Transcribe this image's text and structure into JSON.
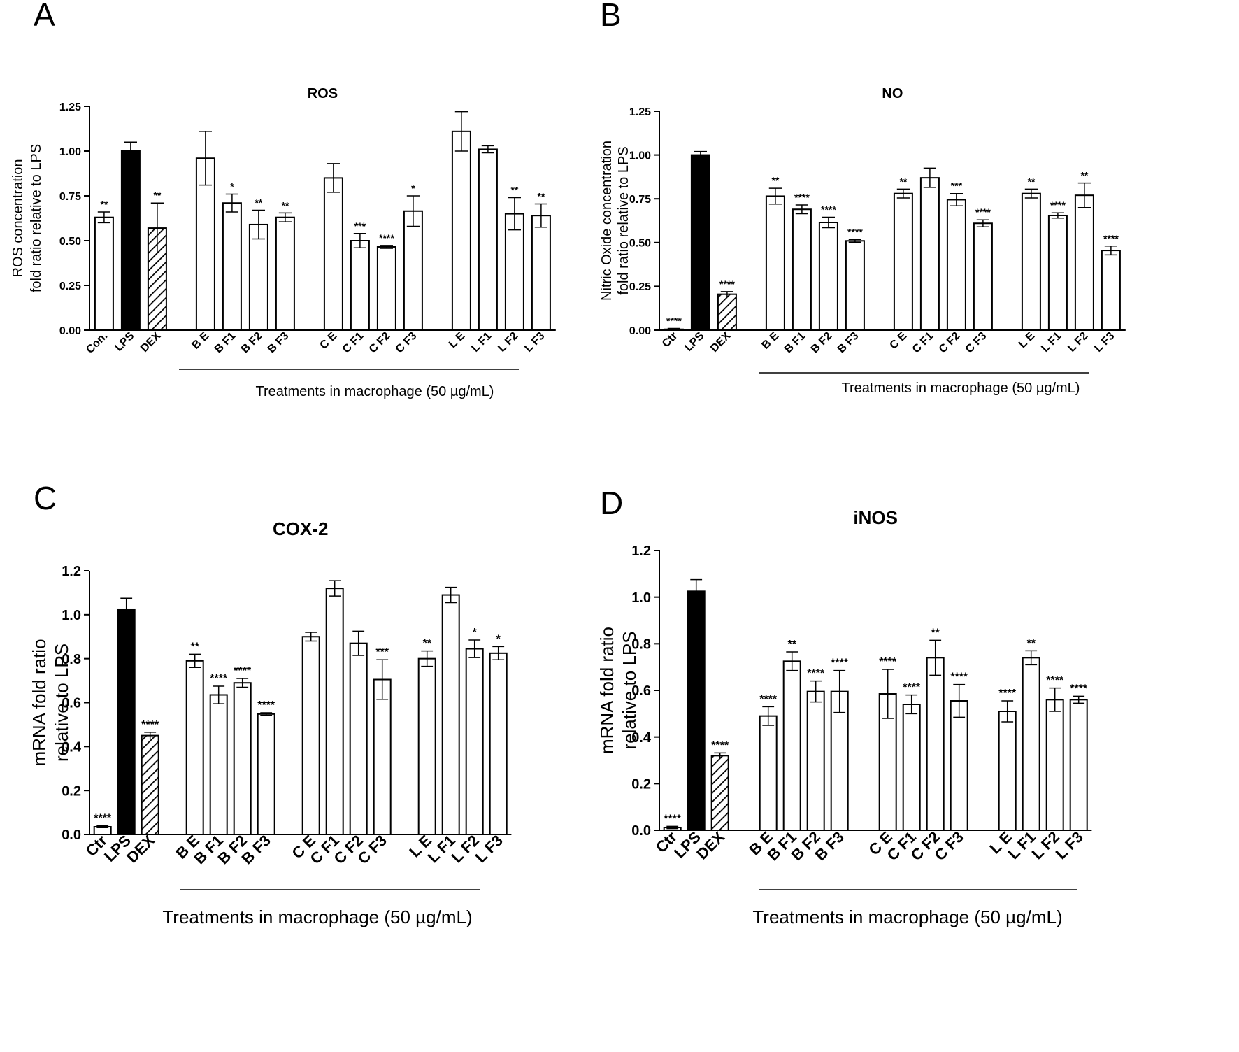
{
  "colors": {
    "axis": "#000000",
    "bar_fill": "#ffffff",
    "bar_lps": "#000000",
    "hatch": "#000000"
  },
  "chart_data": [
    {
      "panel": "A",
      "type": "bar",
      "title": "ROS",
      "ylabel_lines": [
        "ROS concentration",
        "fold ratio relative to LPS"
      ],
      "xlabel": "Treatments in macrophage (50 µg/mL)",
      "ylim": [
        0,
        1.25
      ],
      "ticks": [
        0,
        0.25,
        0.5,
        0.75,
        1.0,
        1.25
      ],
      "tick_labels": [
        "0.00",
        "0.25",
        "0.50",
        "0.75",
        "1.00",
        "1.25"
      ],
      "grid": false,
      "categories": [
        "Con.",
        "LPS",
        "DEX",
        "B E",
        "B F1",
        "B F2",
        "B F3",
        "C E",
        "C F1",
        "C F2",
        "C F3",
        "L E",
        "L F1",
        "L F2",
        "L F3"
      ],
      "values": [
        0.63,
        1.0,
        0.57,
        0.96,
        0.71,
        0.59,
        0.63,
        0.85,
        0.5,
        0.465,
        0.665,
        1.11,
        1.01,
        0.65,
        0.64
      ],
      "errors": [
        0.03,
        0.05,
        0.14,
        0.15,
        0.05,
        0.08,
        0.025,
        0.08,
        0.04,
        0.008,
        0.085,
        0.11,
        0.02,
        0.09,
        0.065
      ],
      "significance": [
        "**",
        "",
        "**",
        "",
        "*",
        "**",
        "**",
        "",
        "***",
        "****",
        "*",
        "",
        "",
        "**",
        "**"
      ],
      "styles": [
        "open",
        "solid",
        "hatch",
        "open",
        "open",
        "open",
        "open",
        "open",
        "open",
        "open",
        "open",
        "open",
        "open",
        "open",
        "open"
      ]
    },
    {
      "panel": "B",
      "type": "bar",
      "title": "NO",
      "ylabel_lines": [
        "Nitric Oxide concentration",
        "fold ratio relative to LPS"
      ],
      "xlabel": "Treatments in macrophage (50 µg/mL)",
      "ylim": [
        0,
        1.25
      ],
      "ticks": [
        0,
        0.25,
        0.5,
        0.75,
        1.0,
        1.25
      ],
      "tick_labels": [
        "0.00",
        "0.25",
        "0.50",
        "0.75",
        "1.00",
        "1.25"
      ],
      "grid": false,
      "categories": [
        "Ctr",
        "LPS",
        "DEX",
        "B E",
        "B F1",
        "B F2",
        "B F3",
        "C E",
        "C F1",
        "C F2",
        "C F3",
        "L E",
        "L F1",
        "L F2",
        "L F3"
      ],
      "values": [
        0.005,
        1.0,
        0.205,
        0.765,
        0.69,
        0.615,
        0.51,
        0.78,
        0.87,
        0.745,
        0.61,
        0.78,
        0.655,
        0.77,
        0.455
      ],
      "errors": [
        0.005,
        0.02,
        0.015,
        0.045,
        0.025,
        0.03,
        0.008,
        0.025,
        0.055,
        0.035,
        0.02,
        0.025,
        0.015,
        0.07,
        0.025
      ],
      "significance": [
        "****",
        "",
        "****",
        "**",
        "****",
        "****",
        "****",
        "**",
        "",
        "***",
        "****",
        "**",
        "****",
        "**",
        "****"
      ],
      "styles": [
        "open",
        "solid",
        "hatch",
        "open",
        "open",
        "open",
        "open",
        "open",
        "open",
        "open",
        "open",
        "open",
        "open",
        "open",
        "open"
      ]
    },
    {
      "panel": "C",
      "type": "bar",
      "title": "COX-2",
      "ylabel_lines": [
        "mRNA fold ratio",
        "relative to LPS"
      ],
      "xlabel": "Treatments in macrophage (50 µg/mL)",
      "ylim": [
        0,
        1.2
      ],
      "ticks": [
        0,
        0.2,
        0.4,
        0.6,
        0.8,
        1.0,
        1.2
      ],
      "tick_labels": [
        "0.0",
        "0.2",
        "0.4",
        "0.6",
        "0.8",
        "1.0",
        "1.2"
      ],
      "grid": false,
      "categories": [
        "Ctr",
        "LPS",
        "DEX",
        "B E",
        "B F1",
        "B F2",
        "B F3",
        "C E",
        "C F1",
        "C F2",
        "C F3",
        "L E",
        "L F1",
        "L F2",
        "L F3"
      ],
      "values": [
        0.035,
        1.025,
        0.45,
        0.79,
        0.635,
        0.69,
        0.548,
        0.9,
        1.12,
        0.87,
        0.705,
        0.8,
        1.09,
        0.845,
        0.825
      ],
      "errors": [
        0.004,
        0.05,
        0.015,
        0.03,
        0.04,
        0.02,
        0.006,
        0.02,
        0.035,
        0.055,
        0.09,
        0.035,
        0.035,
        0.04,
        0.03
      ],
      "significance": [
        "****",
        "",
        "****",
        "**",
        "****",
        "****",
        "****",
        "",
        "",
        "",
        "***",
        "**",
        "",
        "*",
        "*"
      ],
      "styles": [
        "open",
        "solid",
        "hatch",
        "open",
        "open",
        "open",
        "open",
        "open",
        "open",
        "open",
        "open",
        "open",
        "open",
        "open",
        "open"
      ]
    },
    {
      "panel": "D",
      "type": "bar",
      "title": "iNOS",
      "ylabel_lines": [
        "mRNA fold ratio",
        "relative to LPS"
      ],
      "xlabel": "Treatments in macrophage (50 µg/mL)",
      "ylim": [
        0,
        1.2
      ],
      "ticks": [
        0,
        0.2,
        0.4,
        0.6,
        0.8,
        1.0,
        1.2
      ],
      "tick_labels": [
        "0.0",
        "0.2",
        "0.4",
        "0.6",
        "0.8",
        "1.0",
        "1.2"
      ],
      "grid": false,
      "categories": [
        "Ctr",
        "LPS",
        "DEX",
        "B E",
        "B F1",
        "B F2",
        "B F3",
        "C E",
        "C F1",
        "C F2",
        "C F3",
        "L E",
        "L F1",
        "L F2",
        "L F3"
      ],
      "values": [
        0.012,
        1.025,
        0.32,
        0.49,
        0.725,
        0.595,
        0.595,
        0.585,
        0.54,
        0.74,
        0.555,
        0.51,
        0.74,
        0.56,
        0.56
      ],
      "errors": [
        0.005,
        0.05,
        0.012,
        0.04,
        0.04,
        0.045,
        0.09,
        0.105,
        0.04,
        0.075,
        0.07,
        0.045,
        0.03,
        0.05,
        0.015
      ],
      "significance": [
        "****",
        "",
        "****",
        "****",
        "**",
        "****",
        "****",
        "****",
        "****",
        "**",
        "****",
        "****",
        "**",
        "****",
        "****"
      ],
      "styles": [
        "open",
        "solid",
        "hatch",
        "open",
        "open",
        "open",
        "open",
        "open",
        "open",
        "open",
        "open",
        "open",
        "open",
        "open",
        "open"
      ]
    }
  ]
}
